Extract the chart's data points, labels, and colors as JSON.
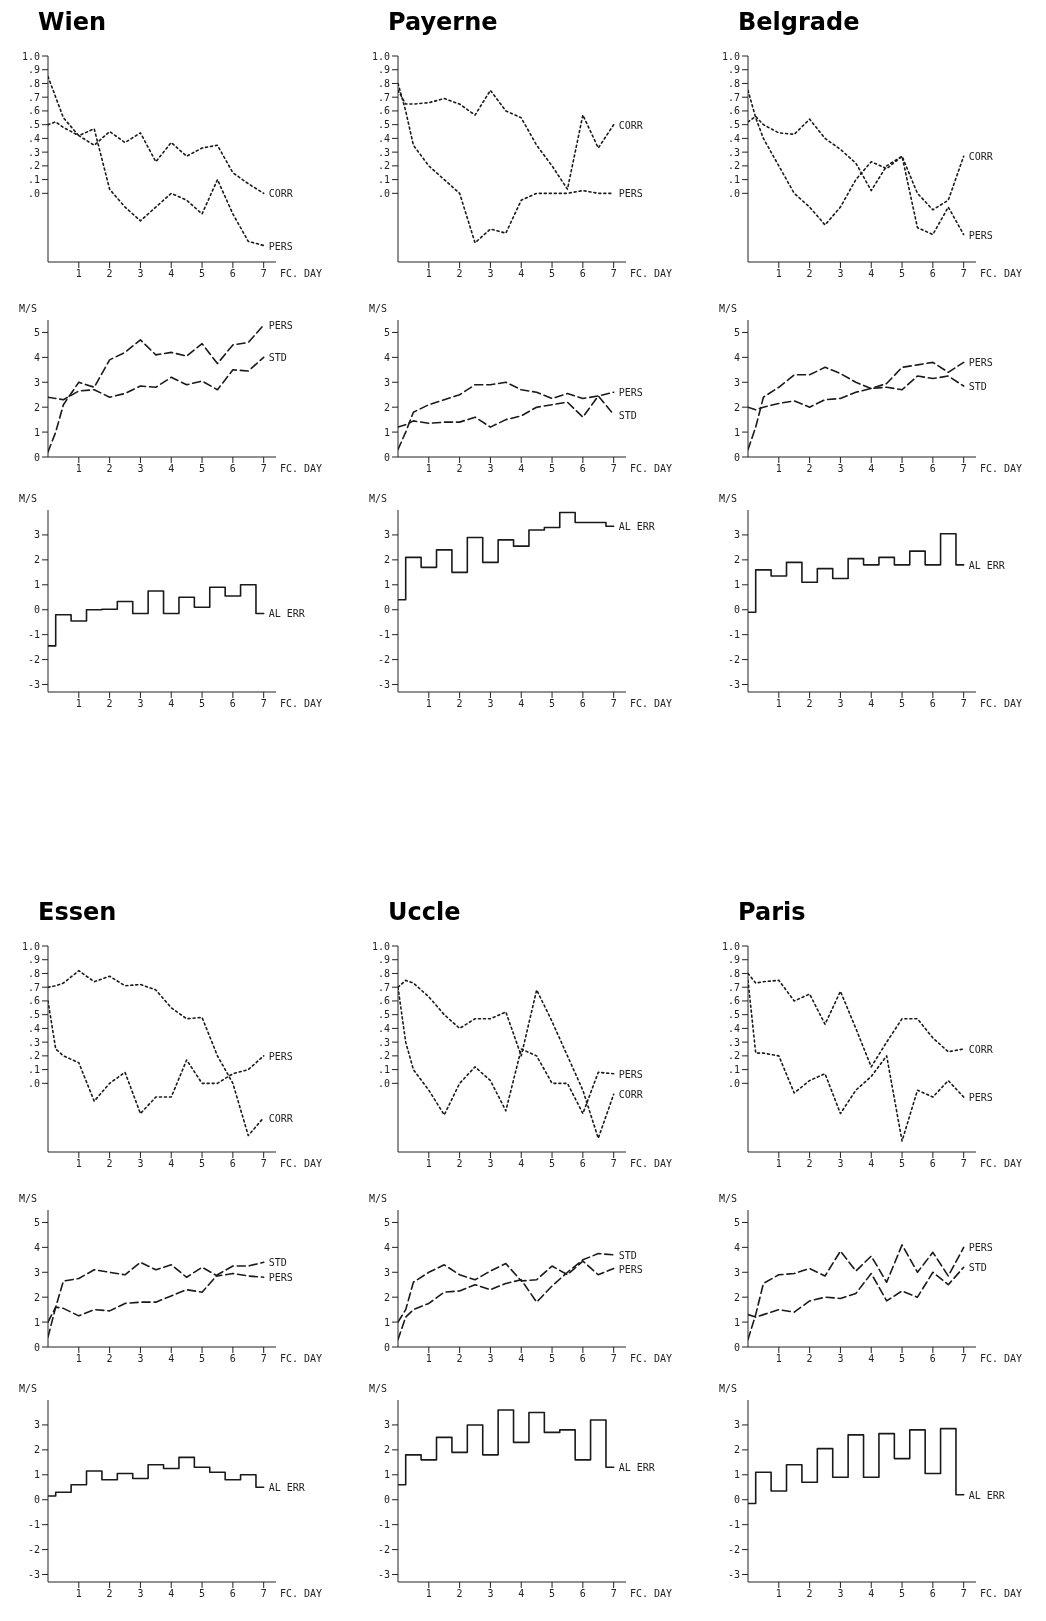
{
  "chart_data": [
    {
      "type": "line",
      "title": "Wien",
      "xlabel": "FC. DAY",
      "x": [
        0,
        0.25,
        0.5,
        1,
        1.5,
        2,
        2.5,
        3,
        3.5,
        4,
        4.5,
        5,
        5.5,
        6,
        6.5,
        7
      ],
      "xlim": [
        0,
        7.4
      ],
      "xticks": [
        1,
        2,
        3,
        4,
        5,
        6,
        7
      ],
      "ylim": [
        -0.5,
        1.0
      ],
      "yticks": [
        {
          "value": 0,
          "label": ".0"
        },
        {
          "value": 0.1,
          "label": ".1"
        },
        {
          "value": 0.2,
          "label": ".2"
        },
        {
          "value": 0.3,
          "label": ".3"
        },
        {
          "value": 0.4,
          "label": ".4"
        },
        {
          "value": 0.5,
          "label": ".5"
        },
        {
          "value": 0.6,
          "label": ".6"
        },
        {
          "value": 0.7,
          "label": ".7"
        },
        {
          "value": 0.8,
          "label": ".8"
        },
        {
          "value": 0.9,
          "label": ".9"
        },
        {
          "value": 1.0,
          "label": "1.0"
        }
      ],
      "series": [
        {
          "name": "CORR",
          "color": "#1a1a1a",
          "line_style": "dotted",
          "values": [
            0.5,
            0.52,
            0.48,
            0.42,
            0.35,
            0.45,
            0.37,
            0.44,
            0.23,
            0.37,
            0.27,
            0.33,
            0.35,
            0.15,
            0.07,
            0.0
          ]
        },
        {
          "name": "PERS",
          "color": "#1a1a1a",
          "line_style": "dotted",
          "values": [
            0.85,
            0.7,
            0.55,
            0.42,
            0.47,
            0.03,
            -0.1,
            -0.2,
            -0.1,
            0.0,
            -0.05,
            -0.15,
            0.1,
            -0.15,
            -0.35,
            -0.38
          ]
        }
      ]
    },
    {
      "type": "line",
      "ylabel": "M/S",
      "xlabel": "FC. DAY",
      "x": [
        0,
        0.25,
        0.5,
        1,
        1.5,
        2,
        2.5,
        3,
        3.5,
        4,
        4.5,
        5,
        5.5,
        6,
        6.5,
        7
      ],
      "xlim": [
        0,
        7.4
      ],
      "xticks": [
        1,
        2,
        3,
        4,
        5,
        6,
        7
      ],
      "ylim": [
        0,
        5.5
      ],
      "yticks": [
        0,
        1,
        2,
        3,
        4,
        5
      ],
      "series": [
        {
          "name": "PERS",
          "color": "#1a1a1a",
          "line_style": "dashed",
          "values": [
            0.2,
            1.0,
            2.1,
            3.0,
            2.8,
            3.9,
            4.2,
            4.7,
            4.1,
            4.2,
            4.05,
            4.55,
            3.75,
            4.5,
            4.6,
            5.3
          ]
        },
        {
          "name": "STD",
          "color": "#1a1a1a",
          "line_style": "dashed",
          "values": [
            2.4,
            2.35,
            2.3,
            2.65,
            2.7,
            2.4,
            2.55,
            2.85,
            2.8,
            3.2,
            2.9,
            3.05,
            2.7,
            3.5,
            3.45,
            4.0
          ]
        }
      ]
    },
    {
      "type": "step",
      "ylabel": "M/S",
      "xlabel": "FC. DAY",
      "x": [
        0,
        0.25,
        0.75,
        1.25,
        1.75,
        2.25,
        2.75,
        3.25,
        3.75,
        4.25,
        4.75,
        5.25,
        5.75,
        6.25,
        6.75,
        7
      ],
      "xlim": [
        0,
        7.4
      ],
      "xticks": [
        1,
        2,
        3,
        4,
        5,
        6,
        7
      ],
      "ylim": [
        -3.3,
        4
      ],
      "yticks": [
        -3,
        -2,
        -1,
        0,
        1,
        2,
        3
      ],
      "series": [
        {
          "name": "AL ERR",
          "color": "#1a1a1a",
          "line_style": "solid",
          "values": [
            -1.45,
            -0.2,
            -0.45,
            0.0,
            0.02,
            0.33,
            -0.15,
            0.75,
            -0.15,
            0.5,
            0.1,
            0.9,
            0.55,
            1.0,
            -0.15,
            -0.15
          ]
        }
      ]
    },
    {
      "type": "line",
      "title": "Payerne",
      "xlabel": "FC. DAY",
      "x": [
        0,
        0.25,
        0.5,
        1,
        1.5,
        2,
        2.5,
        3,
        3.5,
        4,
        4.5,
        5,
        5.5,
        6,
        6.5,
        7
      ],
      "xlim": [
        0,
        7.4
      ],
      "xticks": [
        1,
        2,
        3,
        4,
        5,
        6,
        7
      ],
      "ylim": [
        -0.5,
        1.0
      ],
      "yticks": [
        {
          "value": 0,
          "label": ".0"
        },
        {
          "value": 0.1,
          "label": ".1"
        },
        {
          "value": 0.2,
          "label": ".2"
        },
        {
          "value": 0.3,
          "label": ".3"
        },
        {
          "value": 0.4,
          "label": ".4"
        },
        {
          "value": 0.5,
          "label": ".5"
        },
        {
          "value": 0.6,
          "label": ".6"
        },
        {
          "value": 0.7,
          "label": ".7"
        },
        {
          "value": 0.8,
          "label": ".8"
        },
        {
          "value": 0.9,
          "label": ".9"
        },
        {
          "value": 1.0,
          "label": "1.0"
        }
      ],
      "series": [
        {
          "name": "CORR",
          "color": "#1a1a1a",
          "line_style": "dotted",
          "values": [
            0.75,
            0.65,
            0.65,
            0.66,
            0.69,
            0.65,
            0.57,
            0.75,
            0.6,
            0.55,
            0.35,
            0.2,
            0.03,
            0.57,
            0.33,
            0.5
          ]
        },
        {
          "name": "PERS",
          "color": "#1a1a1a",
          "line_style": "dotted",
          "values": [
            0.8,
            0.6,
            0.35,
            0.2,
            0.1,
            0.0,
            -0.36,
            -0.26,
            -0.29,
            -0.05,
            0.0,
            0.0,
            0.0,
            0.02,
            0.0,
            0.0
          ]
        }
      ]
    },
    {
      "type": "line",
      "ylabel": "M/S",
      "xlabel": "FC. DAY",
      "x": [
        0,
        0.25,
        0.5,
        1,
        1.5,
        2,
        2.5,
        3,
        3.5,
        4,
        4.5,
        5,
        5.5,
        6,
        6.5,
        7
      ],
      "xlim": [
        0,
        7.4
      ],
      "xticks": [
        1,
        2,
        3,
        4,
        5,
        6,
        7
      ],
      "ylim": [
        0,
        5.5
      ],
      "yticks": [
        0,
        1,
        2,
        3,
        4,
        5
      ],
      "series": [
        {
          "name": "PERS",
          "color": "#1a1a1a",
          "line_style": "dashed",
          "values": [
            0.3,
            1.0,
            1.8,
            2.1,
            2.3,
            2.5,
            2.9,
            2.9,
            3.0,
            2.7,
            2.6,
            2.35,
            2.55,
            2.35,
            2.45,
            2.6
          ]
        },
        {
          "name": "STD",
          "color": "#1a1a1a",
          "line_style": "dashed",
          "values": [
            1.2,
            1.3,
            1.45,
            1.35,
            1.4,
            1.4,
            1.6,
            1.2,
            1.5,
            1.65,
            2.0,
            2.1,
            2.2,
            1.6,
            2.45,
            1.7
          ]
        }
      ]
    },
    {
      "type": "step",
      "ylabel": "M/S",
      "xlabel": "FC. DAY",
      "x": [
        0,
        0.25,
        0.75,
        1.25,
        1.75,
        2.25,
        2.75,
        3.25,
        3.75,
        4.25,
        4.75,
        5.25,
        5.75,
        6.25,
        6.75,
        7
      ],
      "xlim": [
        0,
        7.4
      ],
      "xticks": [
        1,
        2,
        3,
        4,
        5,
        6,
        7
      ],
      "ylim": [
        -3.3,
        4
      ],
      "yticks": [
        -3,
        -2,
        -1,
        0,
        1,
        2,
        3
      ],
      "series": [
        {
          "name": "AL ERR",
          "color": "#1a1a1a",
          "line_style": "solid",
          "values": [
            0.4,
            2.1,
            1.7,
            2.4,
            1.5,
            2.9,
            1.9,
            2.8,
            2.55,
            3.2,
            3.3,
            3.9,
            3.5,
            3.5,
            3.35,
            3.35
          ]
        }
      ]
    },
    {
      "type": "line",
      "title": "Belgrade",
      "xlabel": "FC. DAY",
      "x": [
        0,
        0.25,
        0.5,
        1,
        1.5,
        2,
        2.5,
        3,
        3.5,
        4,
        4.5,
        5,
        5.5,
        6,
        6.5,
        7
      ],
      "xlim": [
        0,
        7.4
      ],
      "xticks": [
        1,
        2,
        3,
        4,
        5,
        6,
        7
      ],
      "ylim": [
        -0.5,
        1.0
      ],
      "yticks": [
        {
          "value": 0,
          "label": ".0"
        },
        {
          "value": 0.1,
          "label": ".1"
        },
        {
          "value": 0.2,
          "label": ".2"
        },
        {
          "value": 0.3,
          "label": ".3"
        },
        {
          "value": 0.4,
          "label": ".4"
        },
        {
          "value": 0.5,
          "label": ".5"
        },
        {
          "value": 0.6,
          "label": ".6"
        },
        {
          "value": 0.7,
          "label": ".7"
        },
        {
          "value": 0.8,
          "label": ".8"
        },
        {
          "value": 0.9,
          "label": ".9"
        },
        {
          "value": 1.0,
          "label": "1.0"
        }
      ],
      "series": [
        {
          "name": "CORR",
          "color": "#1a1a1a",
          "line_style": "dotted",
          "values": [
            0.52,
            0.56,
            0.5,
            0.44,
            0.43,
            0.54,
            0.4,
            0.32,
            0.22,
            0.02,
            0.2,
            0.27,
            0.0,
            -0.12,
            -0.05,
            0.27
          ]
        },
        {
          "name": "PERS",
          "color": "#1a1a1a",
          "line_style": "dotted",
          "values": [
            0.75,
            0.55,
            0.4,
            0.2,
            0.0,
            -0.1,
            -0.23,
            -0.1,
            0.1,
            0.23,
            0.18,
            0.27,
            -0.25,
            -0.3,
            -0.1,
            -0.3
          ]
        }
      ]
    },
    {
      "type": "line",
      "ylabel": "M/S",
      "xlabel": "FC. DAY",
      "x": [
        0,
        0.25,
        0.5,
        1,
        1.5,
        2,
        2.5,
        3,
        3.5,
        4,
        4.5,
        5,
        5.5,
        6,
        6.5,
        7
      ],
      "xlim": [
        0,
        7.4
      ],
      "xticks": [
        1,
        2,
        3,
        4,
        5,
        6,
        7
      ],
      "ylim": [
        0,
        5.5
      ],
      "yticks": [
        0,
        1,
        2,
        3,
        4,
        5
      ],
      "series": [
        {
          "name": "PERS",
          "color": "#1a1a1a",
          "line_style": "dashed",
          "values": [
            0.3,
            1.2,
            2.4,
            2.8,
            3.3,
            3.3,
            3.6,
            3.35,
            3.0,
            2.75,
            2.95,
            3.6,
            3.7,
            3.8,
            3.4,
            3.8
          ]
        },
        {
          "name": "STD",
          "color": "#1a1a1a",
          "line_style": "dashed",
          "values": [
            2.0,
            1.9,
            2.0,
            2.15,
            2.25,
            2.0,
            2.3,
            2.35,
            2.6,
            2.75,
            2.8,
            2.7,
            3.25,
            3.15,
            3.25,
            2.85
          ]
        }
      ]
    },
    {
      "type": "step",
      "ylabel": "M/S",
      "xlabel": "FC. DAY",
      "x": [
        0,
        0.25,
        0.75,
        1.25,
        1.75,
        2.25,
        2.75,
        3.25,
        3.75,
        4.25,
        4.75,
        5.25,
        5.75,
        6.25,
        6.75,
        7
      ],
      "xlim": [
        0,
        7.4
      ],
      "xticks": [
        1,
        2,
        3,
        4,
        5,
        6,
        7
      ],
      "ylim": [
        -3.3,
        4
      ],
      "yticks": [
        -3,
        -2,
        -1,
        0,
        1,
        2,
        3
      ],
      "series": [
        {
          "name": "AL ERR",
          "color": "#1a1a1a",
          "line_style": "solid",
          "values": [
            -0.1,
            1.6,
            1.35,
            1.9,
            1.1,
            1.65,
            1.25,
            2.05,
            1.8,
            2.1,
            1.8,
            2.35,
            1.8,
            3.05,
            1.8,
            1.8
          ]
        }
      ]
    },
    {
      "type": "line",
      "title": "Essen",
      "xlabel": "FC. DAY",
      "x": [
        0,
        0.25,
        0.5,
        1,
        1.5,
        2,
        2.5,
        3,
        3.5,
        4,
        4.5,
        5,
        5.5,
        6,
        6.5,
        7
      ],
      "xlim": [
        0,
        7.4
      ],
      "xticks": [
        1,
        2,
        3,
        4,
        5,
        6,
        7
      ],
      "ylim": [
        -0.5,
        1.0
      ],
      "yticks": [
        {
          "value": 0,
          "label": ".0"
        },
        {
          "value": 0.1,
          "label": ".1"
        },
        {
          "value": 0.2,
          "label": ".2"
        },
        {
          "value": 0.3,
          "label": ".3"
        },
        {
          "value": 0.4,
          "label": ".4"
        },
        {
          "value": 0.5,
          "label": ".5"
        },
        {
          "value": 0.6,
          "label": ".6"
        },
        {
          "value": 0.7,
          "label": ".7"
        },
        {
          "value": 0.8,
          "label": ".8"
        },
        {
          "value": 0.9,
          "label": ".9"
        },
        {
          "value": 1.0,
          "label": "1.0"
        }
      ],
      "series": [
        {
          "name": "CORR",
          "color": "#1a1a1a",
          "line_style": "dotted",
          "values": [
            0.7,
            0.71,
            0.73,
            0.82,
            0.74,
            0.78,
            0.71,
            0.72,
            0.68,
            0.55,
            0.47,
            0.48,
            0.2,
            0.0,
            -0.38,
            -0.25
          ]
        },
        {
          "name": "PERS",
          "color": "#1a1a1a",
          "line_style": "dotted",
          "values": [
            0.6,
            0.25,
            0.2,
            0.15,
            -0.13,
            0.0,
            0.08,
            -0.22,
            -0.1,
            -0.1,
            0.17,
            0.0,
            0.0,
            0.07,
            0.1,
            0.2
          ]
        }
      ]
    },
    {
      "type": "line",
      "ylabel": "M/S",
      "xlabel": "FC. DAY",
      "x": [
        0,
        0.25,
        0.5,
        1,
        1.5,
        2,
        2.5,
        3,
        3.5,
        4,
        4.5,
        5,
        5.5,
        6,
        6.5,
        7
      ],
      "xlim": [
        0,
        7.4
      ],
      "xticks": [
        1,
        2,
        3,
        4,
        5,
        6,
        7
      ],
      "ylim": [
        0,
        5.5
      ],
      "yticks": [
        0,
        1,
        2,
        3,
        4,
        5
      ],
      "series": [
        {
          "name": "STD",
          "color": "#1a1a1a",
          "line_style": "dashed",
          "values": [
            1.0,
            1.6,
            1.55,
            1.25,
            1.5,
            1.45,
            1.75,
            1.8,
            1.8,
            2.05,
            2.3,
            2.2,
            2.9,
            3.25,
            3.25,
            3.4
          ]
        },
        {
          "name": "PERS",
          "color": "#1a1a1a",
          "line_style": "dashed",
          "values": [
            0.4,
            1.6,
            2.65,
            2.75,
            3.1,
            3.0,
            2.9,
            3.4,
            3.1,
            3.3,
            2.8,
            3.2,
            2.85,
            2.95,
            2.85,
            2.8
          ]
        }
      ]
    },
    {
      "type": "step",
      "ylabel": "M/S",
      "xlabel": "FC. DAY",
      "x": [
        0,
        0.25,
        0.75,
        1.25,
        1.75,
        2.25,
        2.75,
        3.25,
        3.75,
        4.25,
        4.75,
        5.25,
        5.75,
        6.25,
        6.75,
        7
      ],
      "xlim": [
        0,
        7.4
      ],
      "xticks": [
        1,
        2,
        3,
        4,
        5,
        6,
        7
      ],
      "ylim": [
        -3.3,
        4
      ],
      "yticks": [
        -3,
        -2,
        -1,
        0,
        1,
        2,
        3
      ],
      "series": [
        {
          "name": "AL ERR",
          "color": "#1a1a1a",
          "line_style": "solid",
          "values": [
            0.15,
            0.3,
            0.6,
            1.15,
            0.8,
            1.05,
            0.85,
            1.4,
            1.25,
            1.7,
            1.3,
            1.1,
            0.8,
            1.0,
            0.5,
            0.5
          ]
        }
      ]
    },
    {
      "type": "line",
      "title": "Uccle",
      "xlabel": "FC. DAY",
      "x": [
        0,
        0.25,
        0.5,
        1,
        1.5,
        2,
        2.5,
        3,
        3.5,
        4,
        4.5,
        5,
        5.5,
        6,
        6.5,
        7
      ],
      "xlim": [
        0,
        7.4
      ],
      "xticks": [
        1,
        2,
        3,
        4,
        5,
        6,
        7
      ],
      "ylim": [
        -0.5,
        1.0
      ],
      "yticks": [
        {
          "value": 0,
          "label": ".0"
        },
        {
          "value": 0.1,
          "label": ".1"
        },
        {
          "value": 0.2,
          "label": ".2"
        },
        {
          "value": 0.3,
          "label": ".3"
        },
        {
          "value": 0.4,
          "label": ".4"
        },
        {
          "value": 0.5,
          "label": ".5"
        },
        {
          "value": 0.6,
          "label": ".6"
        },
        {
          "value": 0.7,
          "label": ".7"
        },
        {
          "value": 0.8,
          "label": ".8"
        },
        {
          "value": 0.9,
          "label": ".9"
        },
        {
          "value": 1.0,
          "label": "1.0"
        }
      ],
      "series": [
        {
          "name": "CORR",
          "color": "#1a1a1a",
          "line_style": "dotted",
          "values": [
            0.7,
            0.75,
            0.73,
            0.63,
            0.5,
            0.4,
            0.47,
            0.47,
            0.52,
            0.2,
            0.68,
            0.45,
            0.2,
            -0.05,
            -0.4,
            -0.08
          ]
        },
        {
          "name": "PERS",
          "color": "#1a1a1a",
          "line_style": "dotted",
          "values": [
            0.7,
            0.3,
            0.1,
            -0.05,
            -0.23,
            0.0,
            0.12,
            0.02,
            -0.2,
            0.25,
            0.2,
            0.0,
            0.0,
            -0.22,
            0.08,
            0.07
          ]
        }
      ]
    },
    {
      "type": "line",
      "ylabel": "M/S",
      "xlabel": "FC. DAY",
      "x": [
        0,
        0.25,
        0.5,
        1,
        1.5,
        2,
        2.5,
        3,
        3.5,
        4,
        4.5,
        5,
        5.5,
        6,
        6.5,
        7
      ],
      "xlim": [
        0,
        7.4
      ],
      "xticks": [
        1,
        2,
        3,
        4,
        5,
        6,
        7
      ],
      "ylim": [
        0,
        5.5
      ],
      "yticks": [
        0,
        1,
        2,
        3,
        4,
        5
      ],
      "series": [
        {
          "name": "STD",
          "color": "#1a1a1a",
          "line_style": "dashed",
          "values": [
            0.3,
            1.2,
            1.5,
            1.75,
            2.2,
            2.25,
            2.5,
            2.3,
            2.55,
            2.7,
            1.8,
            2.45,
            3.0,
            3.5,
            3.75,
            3.7
          ]
        },
        {
          "name": "PERS",
          "color": "#1a1a1a",
          "line_style": "dashed",
          "values": [
            1.0,
            1.5,
            2.6,
            3.0,
            3.3,
            2.9,
            2.7,
            3.05,
            3.35,
            2.65,
            2.7,
            3.25,
            2.9,
            3.45,
            2.9,
            3.15
          ]
        }
      ]
    },
    {
      "type": "step",
      "ylabel": "M/S",
      "xlabel": "FC. DAY",
      "x": [
        0,
        0.25,
        0.75,
        1.25,
        1.75,
        2.25,
        2.75,
        3.25,
        3.75,
        4.25,
        4.75,
        5.25,
        5.75,
        6.25,
        6.75,
        7
      ],
      "xlim": [
        0,
        7.4
      ],
      "xticks": [
        1,
        2,
        3,
        4,
        5,
        6,
        7
      ],
      "ylim": [
        -3.3,
        4
      ],
      "yticks": [
        -3,
        -2,
        -1,
        0,
        1,
        2,
        3
      ],
      "series": [
        {
          "name": "AL ERR",
          "color": "#1a1a1a",
          "line_style": "solid",
          "values": [
            0.6,
            1.8,
            1.6,
            2.5,
            1.9,
            3.0,
            1.8,
            3.6,
            2.3,
            3.5,
            2.7,
            2.8,
            1.6,
            3.2,
            1.3,
            1.3
          ]
        }
      ]
    },
    {
      "type": "line",
      "title": "Paris",
      "xlabel": "FC. DAY",
      "x": [
        0,
        0.25,
        0.5,
        1,
        1.5,
        2,
        2.5,
        3,
        3.5,
        4,
        4.5,
        5,
        5.5,
        6,
        6.5,
        7
      ],
      "xlim": [
        0,
        7.4
      ],
      "xticks": [
        1,
        2,
        3,
        4,
        5,
        6,
        7
      ],
      "ylim": [
        -0.5,
        1.0
      ],
      "yticks": [
        {
          "value": 0,
          "label": ".0"
        },
        {
          "value": 0.1,
          "label": ".1"
        },
        {
          "value": 0.2,
          "label": ".2"
        },
        {
          "value": 0.3,
          "label": ".3"
        },
        {
          "value": 0.4,
          "label": ".4"
        },
        {
          "value": 0.5,
          "label": ".5"
        },
        {
          "value": 0.6,
          "label": ".6"
        },
        {
          "value": 0.7,
          "label": ".7"
        },
        {
          "value": 0.8,
          "label": ".8"
        },
        {
          "value": 0.9,
          "label": ".9"
        },
        {
          "value": 1.0,
          "label": "1.0"
        }
      ],
      "series": [
        {
          "name": "CORR",
          "color": "#1a1a1a",
          "line_style": "dotted",
          "values": [
            0.8,
            0.73,
            0.74,
            0.75,
            0.6,
            0.65,
            0.43,
            0.67,
            0.4,
            0.12,
            0.3,
            0.47,
            0.47,
            0.33,
            0.23,
            0.25
          ]
        },
        {
          "name": "PERS",
          "color": "#1a1a1a",
          "line_style": "dotted",
          "values": [
            0.75,
            0.22,
            0.22,
            0.2,
            -0.07,
            0.02,
            0.07,
            -0.22,
            -0.05,
            0.05,
            0.2,
            -0.42,
            -0.05,
            -0.1,
            0.02,
            -0.1
          ]
        }
      ]
    },
    {
      "type": "line",
      "ylabel": "M/S",
      "xlabel": "FC. DAY",
      "x": [
        0,
        0.25,
        0.5,
        1,
        1.5,
        2,
        2.5,
        3,
        3.5,
        4,
        4.5,
        5,
        5.5,
        6,
        6.5,
        7
      ],
      "xlim": [
        0,
        7.4
      ],
      "xticks": [
        1,
        2,
        3,
        4,
        5,
        6,
        7
      ],
      "ylim": [
        0,
        5.5
      ],
      "yticks": [
        0,
        1,
        2,
        3,
        4,
        5
      ],
      "series": [
        {
          "name": "PERS",
          "color": "#1a1a1a",
          "line_style": "dashed",
          "values": [
            0.3,
            1.3,
            2.55,
            2.9,
            2.95,
            3.15,
            2.85,
            3.85,
            3.05,
            3.65,
            2.6,
            4.1,
            3.0,
            3.8,
            2.85,
            4.0
          ]
        },
        {
          "name": "STD",
          "color": "#1a1a1a",
          "line_style": "dashed",
          "values": [
            1.3,
            1.2,
            1.3,
            1.5,
            1.4,
            1.85,
            2.0,
            1.95,
            2.15,
            2.95,
            1.85,
            2.25,
            2.0,
            3.0,
            2.5,
            3.2
          ]
        }
      ]
    },
    {
      "type": "step",
      "ylabel": "M/S",
      "xlabel": "FC. DAY",
      "x": [
        0,
        0.25,
        0.75,
        1.25,
        1.75,
        2.25,
        2.75,
        3.25,
        3.75,
        4.25,
        4.75,
        5.25,
        5.75,
        6.25,
        6.75,
        7
      ],
      "xlim": [
        0,
        7.4
      ],
      "xticks": [
        1,
        2,
        3,
        4,
        5,
        6,
        7
      ],
      "ylim": [
        -3.3,
        4
      ],
      "yticks": [
        -3,
        -2,
        -1,
        0,
        1,
        2,
        3
      ],
      "series": [
        {
          "name": "AL ERR",
          "color": "#1a1a1a",
          "line_style": "solid",
          "values": [
            -0.15,
            1.1,
            0.35,
            1.4,
            0.7,
            2.05,
            0.9,
            2.6,
            0.9,
            2.65,
            1.65,
            2.8,
            1.05,
            2.85,
            0.2,
            0.2
          ]
        }
      ]
    }
  ]
}
